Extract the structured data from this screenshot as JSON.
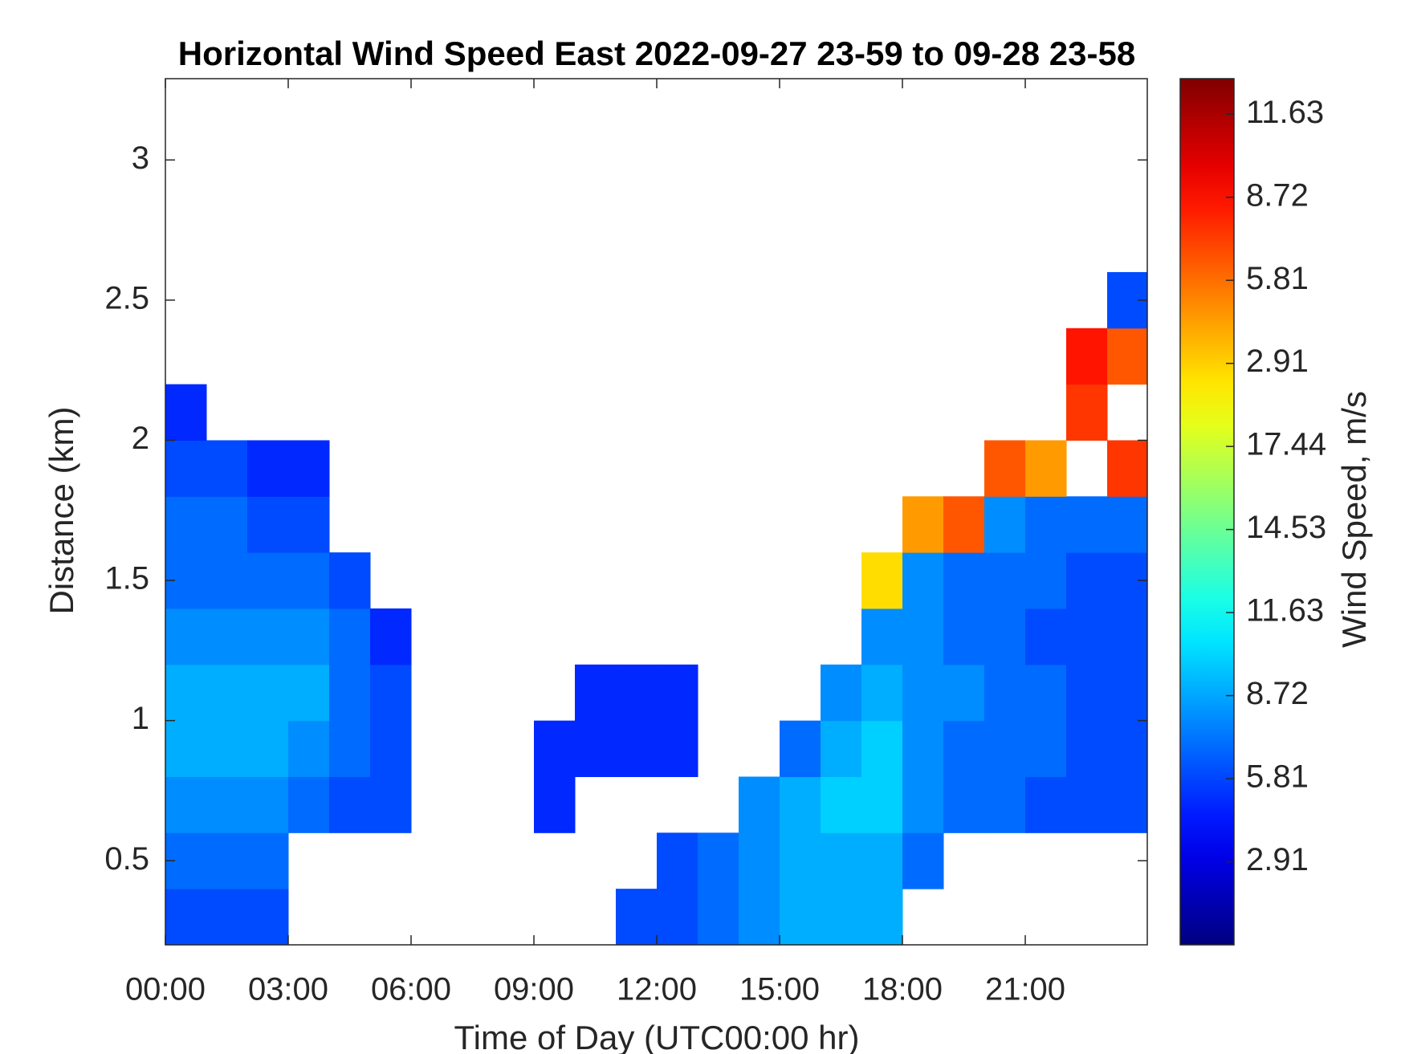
{
  "chart_data": {
    "type": "heatmap",
    "title": "Horizontal Wind Speed East 2022-09-27 23-59 to 09-28 23-58",
    "xlabel": "Time of Day (UTC00:00 hr)",
    "ylabel": "Distance (km)",
    "colorbar_label": "Wind Speed, m/s",
    "colorbar_labels": [
      "2.91",
      "5.81",
      "8.72",
      "11.63",
      "14.53",
      "17.44",
      "2.91",
      "5.81",
      "8.72",
      "11.63"
    ],
    "colormap": "jet",
    "clim": [
      0,
      30.4
    ],
    "xlim": [
      0,
      23.98
    ],
    "xticks": [
      {
        "value": 0,
        "label": "00:00"
      },
      {
        "value": 3,
        "label": "03:00"
      },
      {
        "value": 6,
        "label": "06:00"
      },
      {
        "value": 9,
        "label": "09:00"
      },
      {
        "value": 12,
        "label": "12:00"
      },
      {
        "value": 15,
        "label": "15:00"
      },
      {
        "value": 18,
        "label": "18:00"
      },
      {
        "value": 21,
        "label": "21:00"
      }
    ],
    "ylim": [
      0.2,
      3.29
    ],
    "yticks": [
      0.5,
      1,
      1.5,
      2,
      2.5,
      3
    ],
    "x_edges": [
      0,
      1,
      2,
      3,
      4,
      5,
      6,
      7,
      8,
      9,
      10,
      11,
      12,
      13,
      14,
      15,
      16,
      17,
      18,
      19,
      20,
      21,
      22,
      23,
      24
    ],
    "y_edges": [
      0.2,
      0.4,
      0.6,
      0.8,
      1.0,
      1.2,
      1.4,
      1.6,
      1.8,
      2.0,
      2.2,
      2.4,
      2.6
    ],
    "z": [
      [
        6,
        6,
        6,
        null,
        null,
        null,
        null,
        null,
        null,
        null,
        null,
        6,
        6,
        7,
        8,
        9,
        9,
        9,
        null,
        null,
        null,
        null,
        null,
        null
      ],
      [
        7,
        7,
        7,
        null,
        null,
        null,
        null,
        null,
        null,
        null,
        null,
        null,
        6,
        7,
        8,
        9,
        9,
        9,
        7,
        null,
        null,
        null,
        null,
        null
      ],
      [
        8,
        8,
        8,
        7,
        6,
        6,
        null,
        null,
        null,
        5,
        null,
        null,
        null,
        null,
        8,
        9,
        10,
        10,
        8,
        7,
        7,
        6,
        6,
        6
      ],
      [
        9,
        9,
        9,
        8,
        7,
        6,
        null,
        null,
        null,
        5,
        5,
        5,
        5,
        null,
        null,
        7,
        9,
        10,
        8,
        7,
        7,
        7,
        6,
        6
      ],
      [
        9,
        9,
        9,
        9,
        7,
        6,
        null,
        null,
        null,
        null,
        5,
        5,
        5,
        null,
        null,
        null,
        8,
        9,
        8,
        8,
        7,
        7,
        6,
        6
      ],
      [
        8,
        8,
        8,
        8,
        7,
        5,
        null,
        null,
        null,
        null,
        null,
        null,
        null,
        null,
        null,
        null,
        null,
        8,
        8,
        7,
        7,
        6,
        6,
        6
      ],
      [
        7,
        7,
        7,
        7,
        6,
        null,
        null,
        null,
        null,
        null,
        null,
        null,
        null,
        null,
        null,
        null,
        null,
        20,
        8,
        7,
        7,
        7,
        6,
        6
      ],
      [
        7,
        7,
        6,
        6,
        null,
        null,
        null,
        null,
        null,
        null,
        null,
        null,
        null,
        null,
        null,
        null,
        null,
        null,
        22,
        24,
        8,
        7,
        7,
        7
      ],
      [
        6,
        6,
        5,
        5,
        null,
        null,
        null,
        null,
        null,
        null,
        null,
        null,
        null,
        null,
        null,
        null,
        null,
        null,
        null,
        null,
        24,
        22,
        null,
        25
      ],
      [
        5,
        null,
        null,
        null,
        null,
        null,
        null,
        null,
        null,
        null,
        null,
        null,
        null,
        null,
        null,
        null,
        null,
        null,
        null,
        null,
        null,
        null,
        25,
        null
      ],
      [
        null,
        null,
        null,
        null,
        null,
        null,
        null,
        null,
        null,
        null,
        null,
        null,
        null,
        null,
        null,
        null,
        null,
        null,
        null,
        null,
        null,
        null,
        26,
        24
      ],
      [
        null,
        null,
        null,
        null,
        null,
        null,
        null,
        null,
        null,
        null,
        null,
        null,
        null,
        null,
        null,
        null,
        null,
        null,
        null,
        null,
        null,
        null,
        null,
        6
      ]
    ]
  }
}
